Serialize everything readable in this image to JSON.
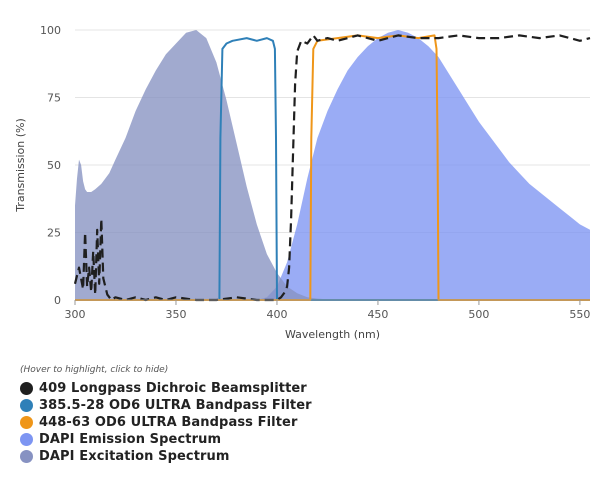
{
  "chart_data": {
    "type": "area",
    "xlabel": "Wavelength (nm)",
    "ylabel": "Transmission (%)",
    "xlim": [
      300,
      555
    ],
    "ylim": [
      0,
      100
    ],
    "xticks": [
      300,
      350,
      400,
      450,
      500,
      550
    ],
    "yticks": [
      0,
      25,
      50,
      75,
      100
    ],
    "grid": "horizontal",
    "legend_hint": "(Hover to highlight, click to hide)",
    "legend_position": "bottom-left",
    "series": [
      {
        "name": "409 Longpass Dichroic Beamsplitter",
        "style": "dashed-line",
        "color": "#1f1f1f",
        "points": [
          [
            300,
            6
          ],
          [
            302,
            12
          ],
          [
            304,
            4
          ],
          [
            305,
            25
          ],
          [
            306,
            5
          ],
          [
            307,
            12
          ],
          [
            308,
            3
          ],
          [
            309,
            18
          ],
          [
            310,
            2
          ],
          [
            311,
            26
          ],
          [
            312,
            6
          ],
          [
            313,
            30
          ],
          [
            314,
            8
          ],
          [
            315,
            5
          ],
          [
            316,
            2
          ],
          [
            318,
            0
          ],
          [
            320,
            1
          ],
          [
            325,
            0
          ],
          [
            330,
            1
          ],
          [
            335,
            0
          ],
          [
            340,
            1
          ],
          [
            345,
            0
          ],
          [
            350,
            1
          ],
          [
            360,
            0
          ],
          [
            370,
            0
          ],
          [
            380,
            1
          ],
          [
            390,
            0
          ],
          [
            400,
            0
          ],
          [
            402,
            1
          ],
          [
            404,
            3
          ],
          [
            405,
            5
          ],
          [
            406,
            12
          ],
          [
            407,
            30
          ],
          [
            408,
            55
          ],
          [
            409,
            80
          ],
          [
            410,
            92
          ],
          [
            412,
            96
          ],
          [
            415,
            95
          ],
          [
            418,
            98
          ],
          [
            420,
            96
          ],
          [
            425,
            97
          ],
          [
            430,
            96
          ],
          [
            440,
            98
          ],
          [
            450,
            96
          ],
          [
            460,
            98
          ],
          [
            470,
            97
          ],
          [
            480,
            97
          ],
          [
            490,
            98
          ],
          [
            500,
            97
          ],
          [
            510,
            97
          ],
          [
            520,
            98
          ],
          [
            530,
            97
          ],
          [
            540,
            98
          ],
          [
            550,
            96
          ],
          [
            555,
            97
          ]
        ]
      },
      {
        "name": "385.5-28 OD6 ULTRA Bandpass Filter",
        "style": "line",
        "color": "#2f80b8",
        "points": [
          [
            300,
            0
          ],
          [
            360,
            0
          ],
          [
            370,
            0
          ],
          [
            371.5,
            0
          ],
          [
            372,
            60
          ],
          [
            373,
            93
          ],
          [
            375,
            95
          ],
          [
            378,
            96
          ],
          [
            385,
            97
          ],
          [
            390,
            96
          ],
          [
            395,
            97
          ],
          [
            398,
            96
          ],
          [
            399,
            93
          ],
          [
            399.5,
            60
          ],
          [
            400,
            0
          ],
          [
            430,
            0
          ],
          [
            555,
            0
          ]
        ]
      },
      {
        "name": "448-63 OD6 ULTRA Bandpass Filter",
        "style": "line",
        "color": "#ef9619",
        "points": [
          [
            300,
            0
          ],
          [
            415,
            0
          ],
          [
            416.5,
            0
          ],
          [
            417,
            60
          ],
          [
            418,
            93
          ],
          [
            420,
            96
          ],
          [
            430,
            97
          ],
          [
            440,
            98
          ],
          [
            450,
            97
          ],
          [
            460,
            98
          ],
          [
            470,
            97
          ],
          [
            478,
            98
          ],
          [
            479,
            93
          ],
          [
            479.5,
            60
          ],
          [
            480,
            0
          ],
          [
            555,
            0
          ]
        ]
      },
      {
        "name": "DAPI Emission Spectrum",
        "style": "area",
        "color": "#7d95f2",
        "points": [
          [
            390,
            0
          ],
          [
            395,
            1
          ],
          [
            400,
            5
          ],
          [
            405,
            14
          ],
          [
            410,
            28
          ],
          [
            415,
            45
          ],
          [
            420,
            60
          ],
          [
            425,
            70
          ],
          [
            430,
            78
          ],
          [
            435,
            85
          ],
          [
            440,
            90
          ],
          [
            445,
            94
          ],
          [
            450,
            97
          ],
          [
            455,
            99
          ],
          [
            460,
            100
          ],
          [
            465,
            99
          ],
          [
            470,
            97
          ],
          [
            475,
            94
          ],
          [
            480,
            90
          ],
          [
            485,
            84
          ],
          [
            490,
            78
          ],
          [
            495,
            72
          ],
          [
            500,
            66
          ],
          [
            505,
            61
          ],
          [
            510,
            56
          ],
          [
            515,
            51
          ],
          [
            520,
            47
          ],
          [
            525,
            43
          ],
          [
            530,
            40
          ],
          [
            535,
            37
          ],
          [
            540,
            34
          ],
          [
            545,
            31
          ],
          [
            550,
            28
          ],
          [
            555,
            26
          ]
        ]
      },
      {
        "name": "DAPI Excitation Spectrum",
        "style": "area",
        "color": "#8792c2",
        "points": [
          [
            300,
            35
          ],
          [
            301,
            45
          ],
          [
            302,
            52
          ],
          [
            303,
            50
          ],
          [
            304,
            44
          ],
          [
            305,
            41
          ],
          [
            306,
            40
          ],
          [
            308,
            40
          ],
          [
            310,
            41
          ],
          [
            313,
            43
          ],
          [
            317,
            47
          ],
          [
            320,
            52
          ],
          [
            325,
            60
          ],
          [
            330,
            70
          ],
          [
            335,
            78
          ],
          [
            340,
            85
          ],
          [
            345,
            91
          ],
          [
            350,
            95
          ],
          [
            355,
            99
          ],
          [
            360,
            100
          ],
          [
            365,
            97
          ],
          [
            370,
            88
          ],
          [
            375,
            74
          ],
          [
            380,
            58
          ],
          [
            385,
            42
          ],
          [
            390,
            28
          ],
          [
            395,
            17
          ],
          [
            400,
            10
          ],
          [
            405,
            5
          ],
          [
            410,
            2.5
          ],
          [
            415,
            1
          ],
          [
            420,
            0.5
          ],
          [
            430,
            0
          ]
        ]
      }
    ]
  }
}
